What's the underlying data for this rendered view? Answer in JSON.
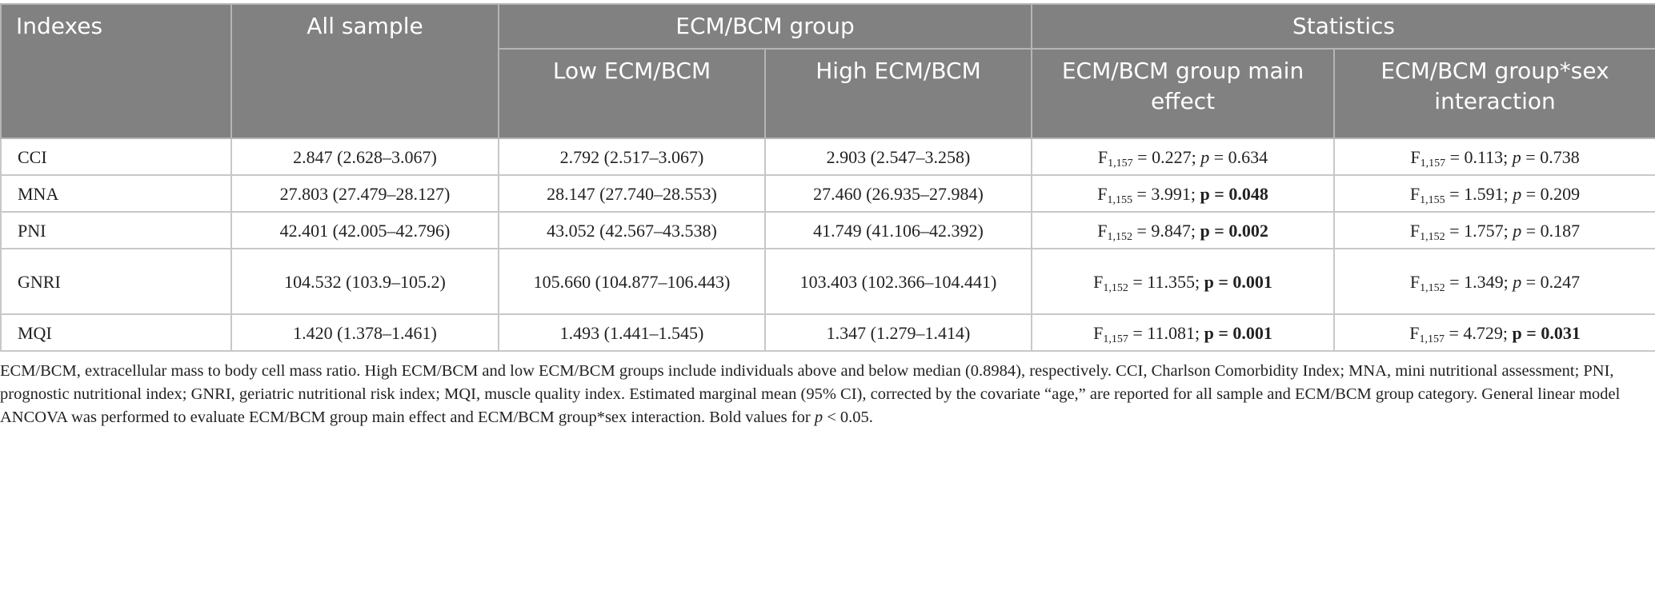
{
  "header": {
    "indexes": "Indexes",
    "all_sample": "All sample",
    "group": "ECM/BCM group",
    "statistics": "Statistics",
    "low": "Low ECM/BCM",
    "high": "High ECM/BCM",
    "main_effect": "ECM/BCM group main effect",
    "interaction": "ECM/BCM group*sex interaction"
  },
  "stat_labels": {
    "f": "F",
    "p": "p"
  },
  "rows": [
    {
      "index": "CCI",
      "all": "2.847 (2.628–3.067)",
      "low": "2.792 (2.517–3.067)",
      "high": "2.903 (2.547–3.258)",
      "main": {
        "df": "1,157",
        "f": "0.227",
        "p": "0.634",
        "sig": false
      },
      "inter": {
        "df": "1,157",
        "f": "0.113",
        "p": "0.738",
        "sig": false
      }
    },
    {
      "index": "MNA",
      "all": "27.803 (27.479–28.127)",
      "low": "28.147 (27.740–28.553)",
      "high": "27.460 (26.935–27.984)",
      "main": {
        "df": "1,155",
        "f": "3.991",
        "p": "0.048",
        "sig": true
      },
      "inter": {
        "df": "1,155",
        "f": "1.591",
        "p": "0.209",
        "sig": false
      }
    },
    {
      "index": "PNI",
      "all": "42.401 (42.005–42.796)",
      "low": "43.052 (42.567–43.538)",
      "high": "41.749 (41.106–42.392)",
      "main": {
        "df": "1,152",
        "f": "9.847",
        "p": "0.002",
        "sig": true
      },
      "inter": {
        "df": "1,152",
        "f": "1.757",
        "p": "0.187",
        "sig": false
      }
    },
    {
      "index": "GNRI",
      "all": "104.532 (103.9–105.2)",
      "low": "105.660 (104.877–106.443)",
      "high": "103.403 (102.366–104.441)",
      "main": {
        "df": "1,152",
        "f": "11.355",
        "p": "0.001",
        "sig": true
      },
      "inter": {
        "df": "1,152",
        "f": "1.349",
        "p": "0.247",
        "sig": false
      }
    },
    {
      "index": "MQI",
      "all": "1.420 (1.378–1.461)",
      "low": "1.493 (1.441–1.545)",
      "high": "1.347 (1.279–1.414)",
      "main": {
        "df": "1,157",
        "f": "11.081",
        "p": "0.001",
        "sig": true
      },
      "inter": {
        "df": "1,157",
        "f": "4.729",
        "p": "0.031",
        "sig": true
      }
    }
  ],
  "footnote": {
    "text": "ECM/BCM, extracellular mass to body cell mass ratio. High ECM/BCM and low ECM/BCM groups include individuals above and below median (0.8984), respectively. CCI, Charlson Comorbidity Index; MNA, mini nutritional assessment; PNI, prognostic nutritional index; GNRI, geriatric nutritional risk index; MQI, muscle quality index. Estimated marginal mean (95% CI), corrected by the covariate “age,” are reported for all sample and ECM/BCM group category. General linear model ANCOVA was performed to evaluate ECM/BCM group main effect and ECM/BCM group*sex interaction. Bold values for ",
    "p": "p",
    "tail": " < 0.05."
  },
  "colors": {
    "header_bg": "#808180",
    "header_text": "#ffffff",
    "border": "#c8c8c8"
  }
}
